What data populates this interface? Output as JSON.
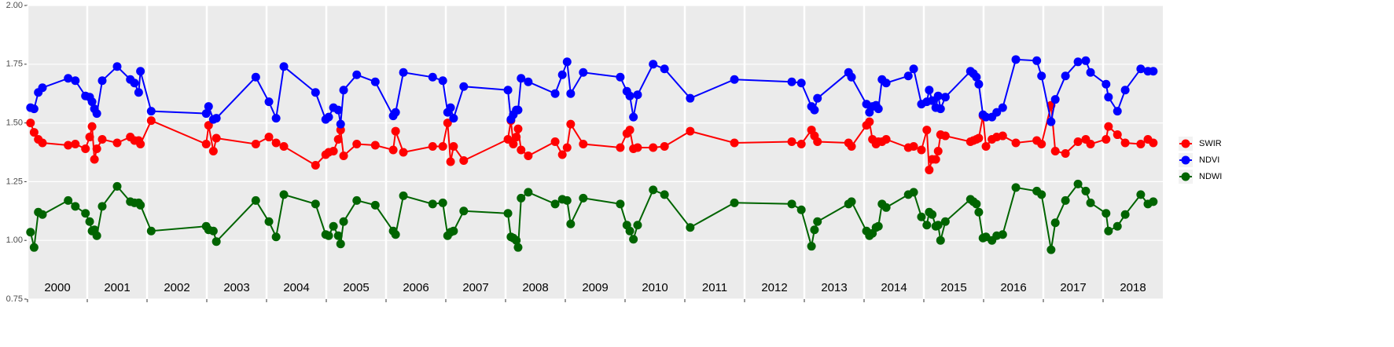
{
  "chart_data": {
    "type": "line",
    "x": [
      2000.05,
      2000.11,
      2000.18,
      2000.25,
      2000.68,
      2000.8,
      2000.97,
      2001.04,
      2001.08,
      2001.12,
      2001.16,
      2001.25,
      2001.5,
      2001.72,
      2001.79,
      2001.86,
      2001.89,
      2002.07,
      2002.99,
      2003.03,
      2003.11,
      2003.16,
      2003.82,
      2004.04,
      2004.16,
      2004.29,
      2004.82,
      2004.99,
      2005.04,
      2005.12,
      2005.2,
      2005.24,
      2005.29,
      2005.51,
      2005.82,
      2006.12,
      2006.16,
      2006.29,
      2006.78,
      2006.95,
      2007.03,
      2007.08,
      2007.13,
      2007.3,
      2008.04,
      2008.09,
      2008.13,
      2008.18,
      2008.21,
      2008.26,
      2008.38,
      2008.83,
      2008.95,
      2009.03,
      2009.09,
      2009.3,
      2009.92,
      2010.03,
      2010.08,
      2010.14,
      2010.21,
      2010.47,
      2010.66,
      2011.09,
      2011.83,
      2012.79,
      2012.95,
      2013.12,
      2013.17,
      2013.22,
      2013.74,
      2013.79,
      2014.04,
      2014.09,
      2014.14,
      2014.2,
      2014.24,
      2014.3,
      2014.37,
      2014.74,
      2014.83,
      2014.96,
      2015.05,
      2015.09,
      2015.14,
      2015.2,
      2015.24,
      2015.28,
      2015.36,
      2015.78,
      2015.83,
      2015.88,
      2015.92,
      2015.99,
      2016.04,
      2016.14,
      2016.22,
      2016.32,
      2016.54,
      2016.89,
      2016.97,
      2017.13,
      2017.2,
      2017.37,
      2017.58,
      2017.71,
      2017.79,
      2018.05,
      2018.09,
      2018.24,
      2018.37,
      2018.63,
      2018.75,
      2018.84
    ],
    "series": [
      {
        "name": "SWIR",
        "color": "#ff0000",
        "values": [
          1.5,
          1.46,
          1.43,
          1.415,
          1.405,
          1.41,
          1.39,
          1.44,
          1.485,
          1.345,
          1.39,
          1.43,
          1.415,
          1.44,
          1.425,
          1.425,
          1.41,
          1.51,
          1.41,
          1.49,
          1.38,
          1.435,
          1.41,
          1.44,
          1.415,
          1.4,
          1.32,
          1.365,
          1.375,
          1.38,
          1.43,
          1.47,
          1.36,
          1.41,
          1.405,
          1.385,
          1.465,
          1.375,
          1.4,
          1.4,
          1.5,
          1.335,
          1.4,
          1.34,
          1.43,
          1.51,
          1.41,
          1.44,
          1.475,
          1.385,
          1.36,
          1.42,
          1.365,
          1.395,
          1.495,
          1.41,
          1.395,
          1.455,
          1.47,
          1.39,
          1.395,
          1.395,
          1.4,
          1.465,
          1.415,
          1.42,
          1.41,
          1.47,
          1.445,
          1.42,
          1.415,
          1.4,
          1.49,
          1.505,
          1.43,
          1.41,
          1.42,
          1.42,
          1.43,
          1.395,
          1.4,
          1.385,
          1.47,
          1.3,
          1.345,
          1.345,
          1.38,
          1.45,
          1.445,
          1.42,
          1.425,
          1.43,
          1.435,
          1.53,
          1.4,
          1.43,
          1.44,
          1.445,
          1.415,
          1.425,
          1.41,
          1.575,
          1.38,
          1.37,
          1.42,
          1.43,
          1.41,
          1.43,
          1.485,
          1.45,
          1.415,
          1.41,
          1.43,
          1.415
        ]
      },
      {
        "name": "NDVI",
        "color": "#0000ff",
        "values": [
          1.565,
          1.56,
          1.63,
          1.65,
          1.69,
          1.68,
          1.615,
          1.61,
          1.59,
          1.56,
          1.54,
          1.68,
          1.74,
          1.685,
          1.67,
          1.63,
          1.72,
          1.55,
          1.54,
          1.57,
          1.515,
          1.52,
          1.695,
          1.59,
          1.52,
          1.74,
          1.63,
          1.515,
          1.525,
          1.565,
          1.555,
          1.495,
          1.64,
          1.705,
          1.675,
          1.53,
          1.545,
          1.715,
          1.695,
          1.68,
          1.545,
          1.565,
          1.52,
          1.655,
          1.64,
          1.515,
          1.535,
          1.555,
          1.555,
          1.69,
          1.675,
          1.625,
          1.705,
          1.76,
          1.625,
          1.715,
          1.695,
          1.635,
          1.615,
          1.525,
          1.62,
          1.75,
          1.73,
          1.605,
          1.685,
          1.675,
          1.67,
          1.57,
          1.555,
          1.605,
          1.715,
          1.695,
          1.58,
          1.545,
          1.57,
          1.575,
          1.56,
          1.685,
          1.67,
          1.7,
          1.73,
          1.58,
          1.59,
          1.64,
          1.595,
          1.565,
          1.615,
          1.56,
          1.61,
          1.72,
          1.71,
          1.695,
          1.665,
          1.535,
          1.525,
          1.525,
          1.545,
          1.565,
          1.77,
          1.765,
          1.7,
          1.505,
          1.6,
          1.7,
          1.76,
          1.765,
          1.715,
          1.665,
          1.61,
          1.55,
          1.64,
          1.73,
          1.72,
          1.72
        ]
      },
      {
        "name": "NDWI",
        "color": "#006400",
        "values": [
          1.035,
          0.97,
          1.12,
          1.11,
          1.17,
          1.145,
          1.115,
          1.08,
          1.04,
          1.045,
          1.02,
          1.145,
          1.23,
          1.165,
          1.16,
          1.16,
          1.15,
          1.04,
          1.06,
          1.045,
          1.04,
          0.995,
          1.17,
          1.08,
          1.015,
          1.195,
          1.155,
          1.025,
          1.02,
          1.06,
          1.02,
          0.985,
          1.08,
          1.17,
          1.15,
          1.04,
          1.025,
          1.19,
          1.155,
          1.16,
          1.02,
          1.035,
          1.04,
          1.125,
          1.115,
          1.015,
          1.01,
          1.0,
          0.97,
          1.18,
          1.205,
          1.155,
          1.175,
          1.17,
          1.07,
          1.18,
          1.155,
          1.065,
          1.04,
          1.005,
          1.065,
          1.215,
          1.195,
          1.055,
          1.16,
          1.155,
          1.13,
          0.975,
          1.045,
          1.08,
          1.155,
          1.165,
          1.04,
          1.02,
          1.03,
          1.055,
          1.06,
          1.155,
          1.14,
          1.195,
          1.205,
          1.1,
          1.065,
          1.12,
          1.11,
          1.06,
          1.065,
          1.0,
          1.08,
          1.175,
          1.165,
          1.155,
          1.12,
          1.01,
          1.015,
          1.0,
          1.02,
          1.025,
          1.225,
          1.21,
          1.195,
          0.96,
          1.075,
          1.17,
          1.24,
          1.21,
          1.16,
          1.115,
          1.04,
          1.06,
          1.11,
          1.195,
          1.155,
          1.165
        ]
      }
    ],
    "xlim": [
      2000,
      2019
    ],
    "xticks": [
      2000,
      2001,
      2002,
      2003,
      2004,
      2005,
      2006,
      2007,
      2008,
      2009,
      2010,
      2011,
      2012,
      2013,
      2014,
      2015,
      2016,
      2017,
      2018
    ],
    "ylim": [
      0.75,
      2.0
    ],
    "yticks": [
      0.75,
      {
        "value": 1.0,
        "label": "1.00"
      },
      1.25,
      {
        "value": 1.5,
        "label": "1.50"
      },
      1.75,
      {
        "value": 2.0,
        "label": "2.00"
      }
    ],
    "grid": true,
    "legend": "right"
  }
}
